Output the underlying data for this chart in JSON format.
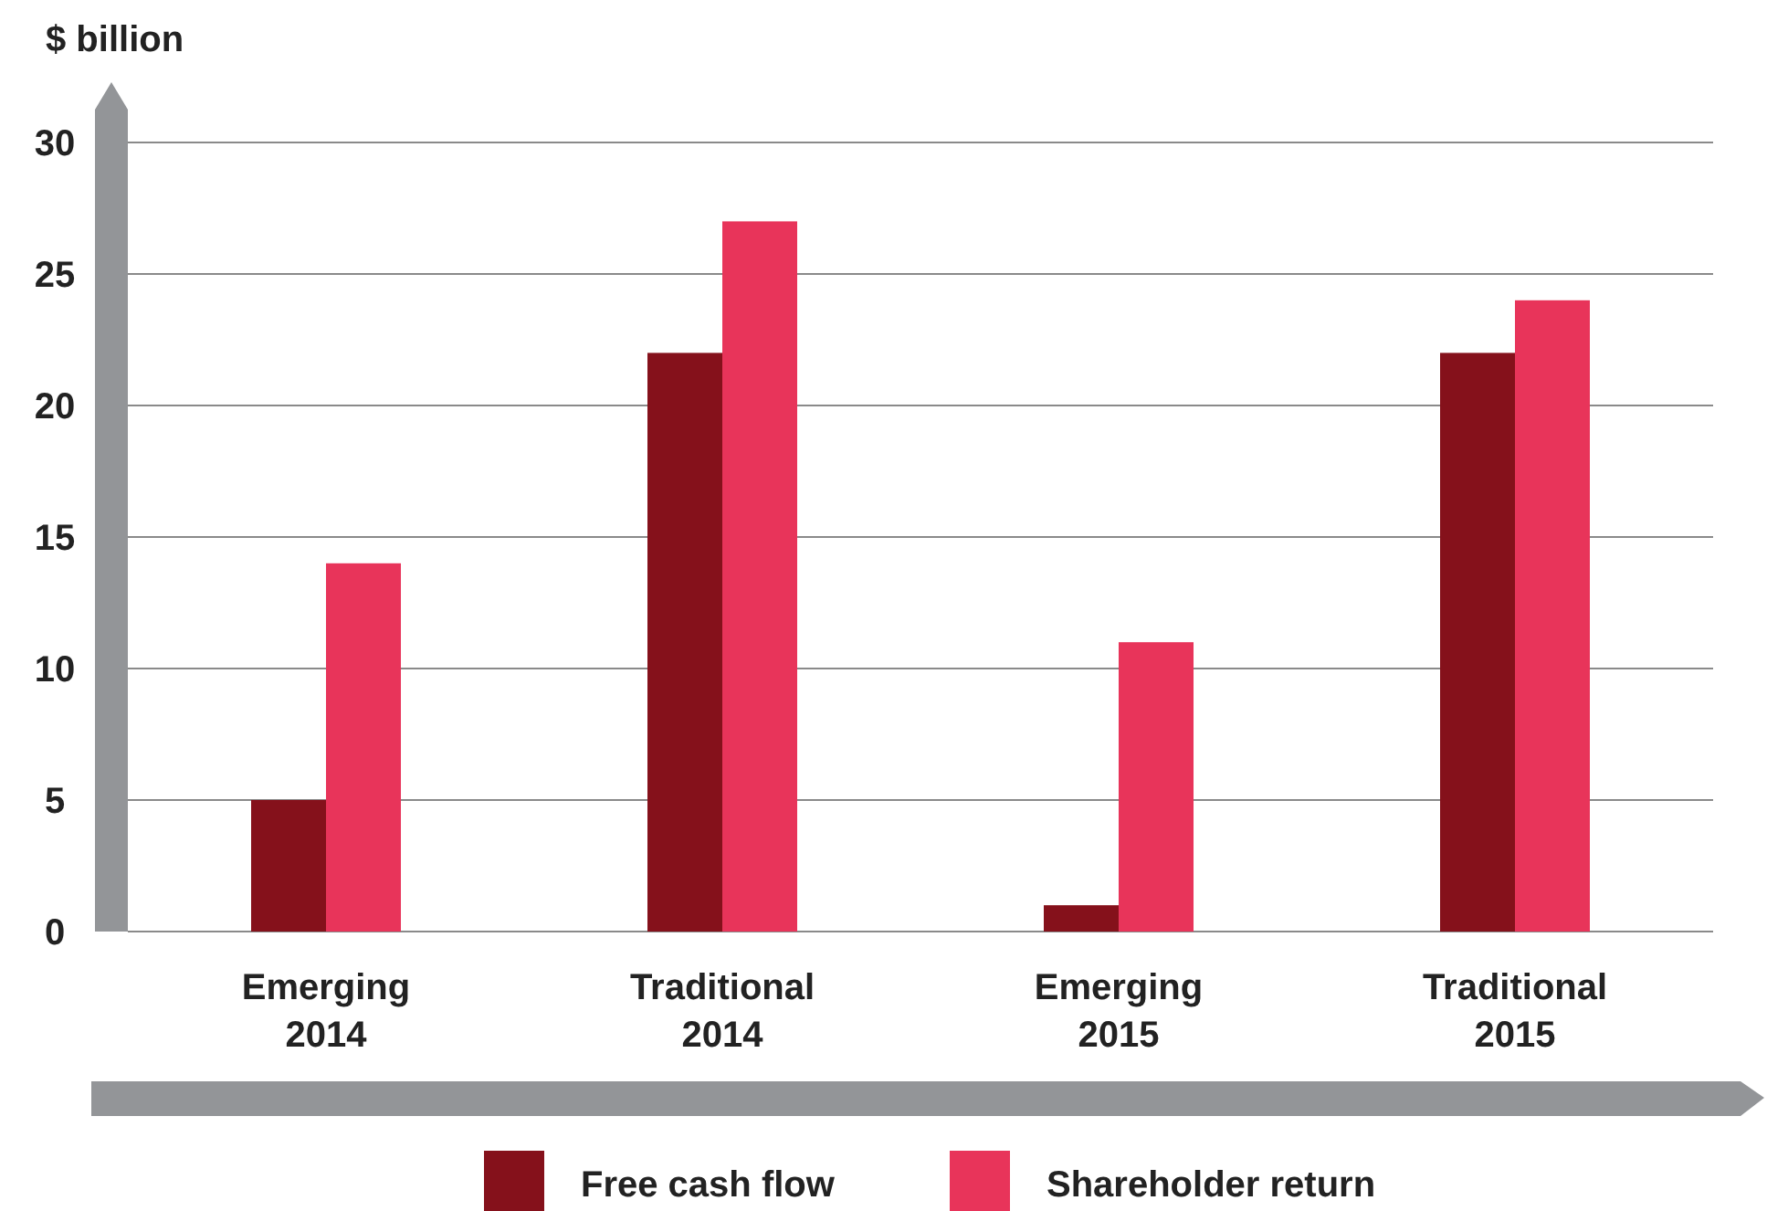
{
  "chart_data": {
    "type": "bar",
    "ylabel": "$ billion",
    "categories": [
      "Emerging\n2014",
      "Traditional\n2014",
      "Emerging\n2015",
      "Traditional\n2015"
    ],
    "series": [
      {
        "name": "Free cash flow",
        "color": "#85111b",
        "values": [
          5,
          22,
          1,
          22
        ]
      },
      {
        "name": "Shareholder return",
        "color": "#e8345a",
        "values": [
          14,
          27,
          11,
          24
        ]
      }
    ],
    "ylim": [
      0,
      30
    ],
    "yticks": [
      0,
      5,
      10,
      15,
      20,
      25,
      30
    ],
    "grid": "y",
    "legend": "bottom"
  }
}
